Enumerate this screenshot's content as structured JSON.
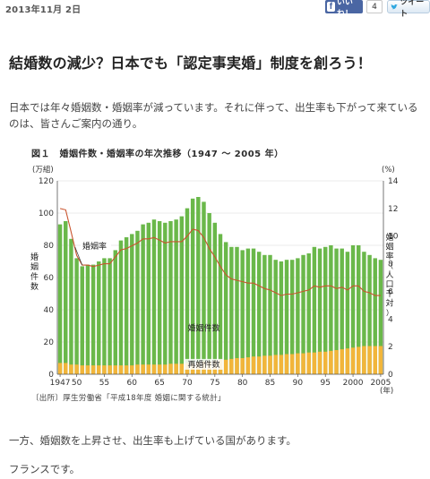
{
  "header": {
    "date": "2013年11月 2日",
    "like_label": "いいね！",
    "like_count": "4",
    "tweet_label": "ツイート"
  },
  "article": {
    "title": "結婚数の減少？日本でも「認定事実婚」制度を創ろう！",
    "intro": "日本では年々婚姻数・婚姻率が減っています。それに伴って、出生率も下がって来ているのは、皆さんご案内の通り。",
    "after_chart_1": "一方、婚姻数を上昇させ、出生率も上げている国があります。",
    "after_chart_2": "フランスです。"
  },
  "figure": {
    "title": "図１　婚姻件数・婚姻率の年次推移（1947 ～ 2005 年）",
    "source": "〔出所〕厚生労働省「平成18年度 婚姻に関する統計」"
  },
  "colors": {
    "total_bar": "#6ab84a",
    "remarriage_bar": "#f2b53a",
    "rate_line": "#c9542e"
  },
  "chart_data": {
    "type": "bar",
    "title": "図１　婚姻件数・婚姻率の年次推移（1947 ～ 2005 年）",
    "left_unit": "(万組)",
    "right_unit": "(%)",
    "x_unit": "(年)",
    "ylabel_left": "婚姻件数",
    "ylabel_right": "婚姻率（人口千対）",
    "ylim_left": [
      0,
      120
    ],
    "ylim_right": [
      0,
      14
    ],
    "yticks_left": [
      0,
      20,
      40,
      60,
      80,
      100,
      120
    ],
    "yticks_right": [
      0,
      2,
      4,
      6,
      8,
      10,
      12,
      14
    ],
    "x_ticks": [
      "1947",
      "50",
      "55",
      "60",
      "65",
      "70",
      "75",
      "80",
      "85",
      "90",
      "95",
      "2000",
      "2005"
    ],
    "series_labels": {
      "total": "婚姻件数",
      "remarriage": "再婚件数",
      "rate": "婚姻率"
    },
    "years": [
      1947,
      1948,
      1949,
      1950,
      1951,
      1952,
      1953,
      1954,
      1955,
      1956,
      1957,
      1958,
      1959,
      1960,
      1961,
      1962,
      1963,
      1964,
      1965,
      1966,
      1967,
      1968,
      1969,
      1970,
      1971,
      1972,
      1973,
      1974,
      1975,
      1976,
      1977,
      1978,
      1979,
      1980,
      1981,
      1982,
      1983,
      1984,
      1985,
      1986,
      1987,
      1988,
      1989,
      1990,
      1991,
      1992,
      1993,
      1994,
      1995,
      1996,
      1997,
      1998,
      1999,
      2000,
      2001,
      2002,
      2003,
      2004,
      2005
    ],
    "marriages": [
      93,
      95,
      84,
      72,
      67,
      68,
      68,
      70,
      72,
      72,
      77,
      83,
      85,
      87,
      89,
      93,
      94,
      96,
      95,
      94,
      95,
      96,
      98,
      103,
      109,
      110,
      107,
      100,
      94,
      87,
      82,
      79,
      79,
      77,
      78,
      78,
      76,
      74,
      74,
      71,
      70,
      71,
      71,
      72,
      74,
      75,
      79,
      78,
      79,
      80,
      78,
      78,
      76,
      80,
      80,
      76,
      74,
      72,
      71
    ],
    "remarriages": [
      7,
      7,
      6,
      6,
      5.5,
      5.5,
      5.5,
      5.5,
      5.5,
      5.5,
      5.5,
      5.5,
      5.5,
      5.5,
      6,
      6,
      6,
      6,
      6,
      6,
      6.5,
      6.5,
      6.5,
      7,
      7,
      7.5,
      8,
      8,
      8.5,
      9,
      9,
      9.5,
      10,
      10,
      10.5,
      11,
      11,
      11.5,
      11.5,
      12,
      12,
      12.5,
      12.5,
      13,
      13,
      13.5,
      13.5,
      14,
      14,
      14.5,
      15,
      15.5,
      16,
      16.5,
      17,
      17.5,
      17.5,
      17.5,
      17.5
    ],
    "rate": [
      12.0,
      11.9,
      10.3,
      8.6,
      7.9,
      7.9,
      7.8,
      7.9,
      8.0,
      8.0,
      8.5,
      9.0,
      9.1,
      9.3,
      9.5,
      9.8,
      9.8,
      9.9,
      9.7,
      9.5,
      9.6,
      9.6,
      9.6,
      10.0,
      10.5,
      10.4,
      9.9,
      9.1,
      8.5,
      7.8,
      7.2,
      6.9,
      6.8,
      6.7,
      6.6,
      6.6,
      6.4,
      6.2,
      6.1,
      5.9,
      5.7,
      5.8,
      5.8,
      5.9,
      6.0,
      6.1,
      6.4,
      6.3,
      6.4,
      6.4,
      6.2,
      6.3,
      6.1,
      6.4,
      6.4,
      6.0,
      5.9,
      5.7,
      5.7
    ]
  }
}
